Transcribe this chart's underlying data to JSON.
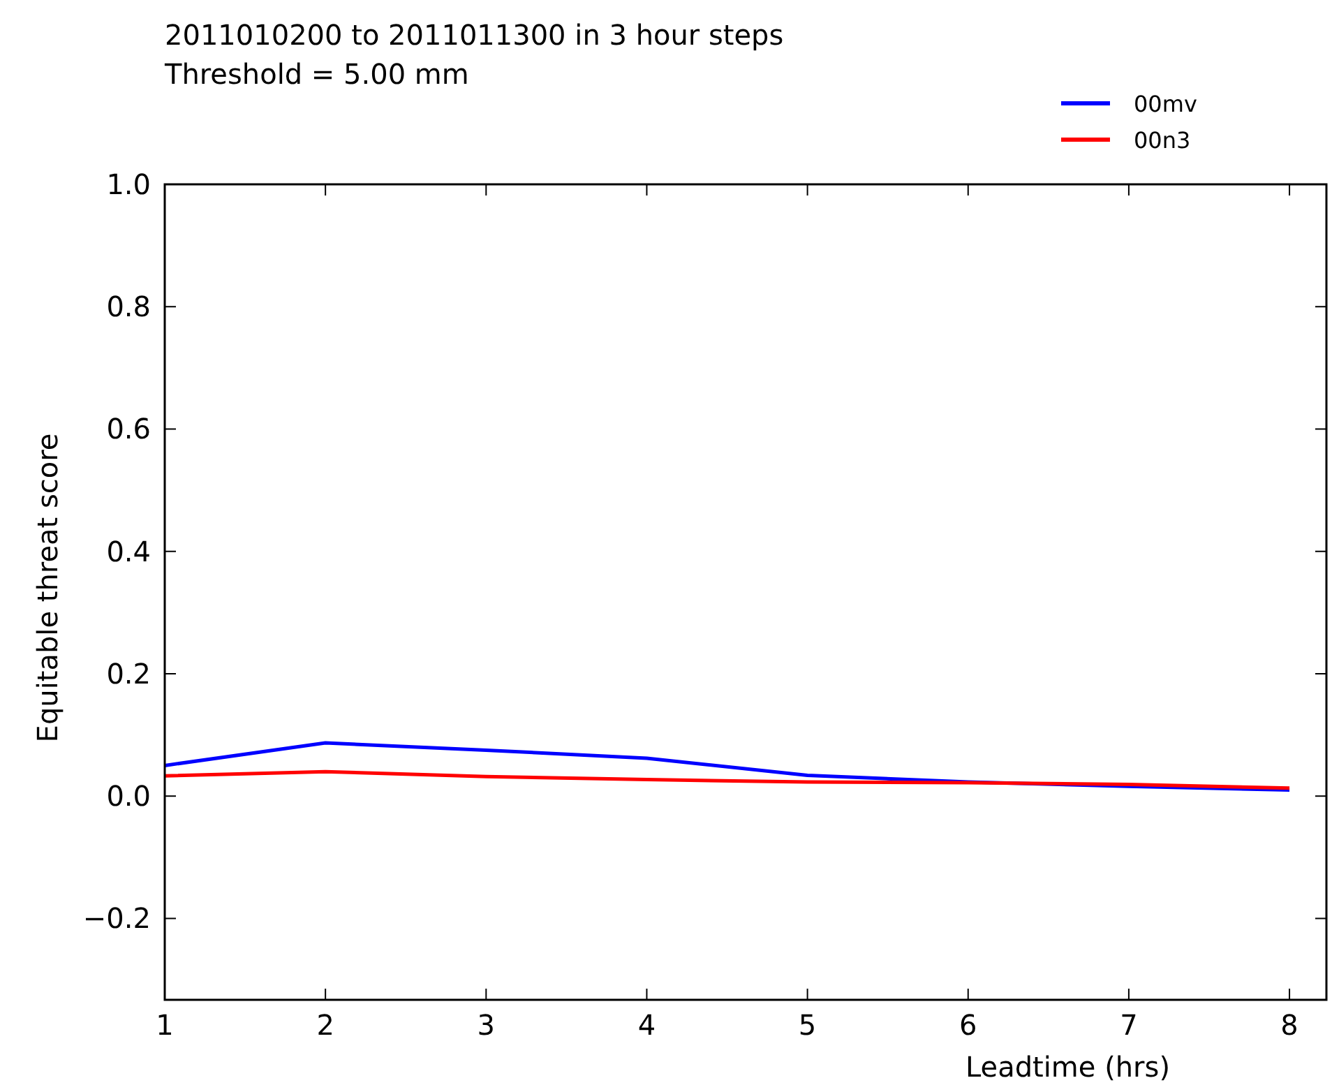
{
  "chart_data": {
    "type": "line",
    "title": "2011010200 to 2011011300 in 3 hour steps",
    "subtitle": "Threshold = 5.00 mm",
    "xlabel": "Leadtime (hrs)",
    "ylabel": "Equitable threat score",
    "x": [
      1,
      2,
      3,
      4,
      5,
      6,
      7,
      8
    ],
    "series": [
      {
        "name": "00mv",
        "color": "#0000ff",
        "values": [
          0.05,
          0.087,
          0.075,
          0.062,
          0.034,
          0.023,
          0.016,
          0.01
        ]
      },
      {
        "name": "00n3",
        "color": "#ff0000",
        "values": [
          0.033,
          0.04,
          0.032,
          0.027,
          0.023,
          0.022,
          0.019,
          0.013
        ]
      }
    ],
    "xlim": [
      1,
      8.23
    ],
    "xticks": [
      1,
      2,
      3,
      4,
      5,
      6,
      7,
      8
    ],
    "ylim": [
      -0.333,
      1.0
    ],
    "yticks": [
      {
        "value": -0.2,
        "label": "−0.2"
      },
      {
        "value": 0,
        "label": "0.0"
      },
      {
        "value": 0.2,
        "label": "0.2"
      },
      {
        "value": 0.4,
        "label": "0.4"
      },
      {
        "value": 0.6,
        "label": "0.6"
      },
      {
        "value": 0.8,
        "label": "0.8"
      },
      {
        "value": 1,
        "label": "1.0"
      }
    ],
    "grid": false,
    "legend": "top right",
    "line_style": "solid",
    "marker": "none"
  }
}
